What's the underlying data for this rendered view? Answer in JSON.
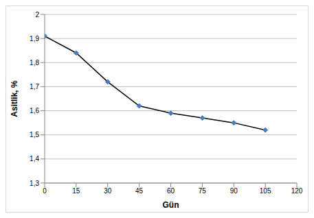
{
  "chart_data": {
    "type": "line",
    "x_label": "Gün",
    "y_label": "Asitlik, %",
    "x": [
      0,
      15,
      30,
      45,
      60,
      75,
      90,
      105
    ],
    "values": [
      1.91,
      1.84,
      1.72,
      1.62,
      1.59,
      1.57,
      1.55,
      1.52
    ],
    "color": "#000000",
    "marker": "diamond",
    "xlim": [
      0,
      120
    ],
    "xticks": [
      0,
      15,
      30,
      45,
      60,
      75,
      90,
      105,
      120
    ],
    "ylim": [
      1.3,
      2
    ],
    "yticks": [
      {
        "value": 1.3,
        "label": "1,3"
      },
      {
        "value": 1.4,
        "label": "1,4"
      },
      {
        "value": 1.5,
        "label": "1,5"
      },
      {
        "value": 1.6,
        "label": "1,6"
      },
      {
        "value": 1.7,
        "label": "1,7"
      },
      {
        "value": 1.8,
        "label": "1,8"
      },
      {
        "value": 1.9,
        "label": "1,9"
      },
      2
    ],
    "grid": true
  }
}
